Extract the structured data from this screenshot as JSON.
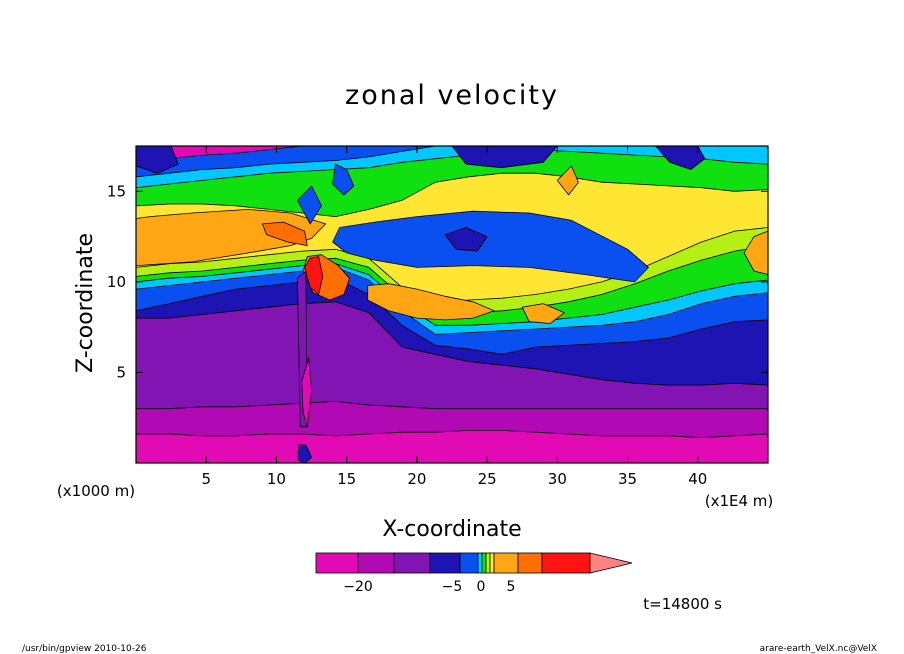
{
  "chart_data": {
    "type": "heatmap",
    "title": "zonal velocity",
    "xlabel": "X-coordinate",
    "ylabel": "Z-coordinate",
    "x_unit": "(x1E4 m)",
    "y_unit": "(x1000 m)",
    "xlim": [
      0,
      45
    ],
    "ylim": [
      0,
      17.5
    ],
    "x_ticks": [
      "5",
      "10",
      "15",
      "20",
      "25",
      "30",
      "35",
      "40"
    ],
    "y_ticks": [
      "5",
      "10",
      "15"
    ],
    "colorbar": {
      "ticks": [
        "-20",
        "-5",
        "0",
        "5"
      ],
      "colors": [
        "#e10ab4",
        "#b10ab4",
        "#8214b4",
        "#1e14b4",
        "#0a50f0",
        "#00c8ff",
        "#10e010",
        "#b4f014",
        "#ffe632",
        "#ffa614",
        "#ff6e00",
        "#ff1414",
        "#ff8282"
      ]
    },
    "time_label": "t=14800 s",
    "footer_left": "/usr/bin/gpview  2010-10-26",
    "footer_right": "arare-earth_VelX.nc@VelX",
    "bands": [
      {
        "name": "magenta",
        "color": "#e10ab4",
        "top": [
          1.6,
          1.6,
          1.5,
          1.5,
          1.6,
          1.6,
          1.5,
          1.6,
          1.7,
          1.7,
          1.8,
          1.8,
          1.7,
          1.6,
          1.5,
          1.5,
          1.5,
          1.4,
          1.5,
          1.6
        ]
      },
      {
        "name": "purple",
        "color": "#b10ab4",
        "top": [
          3.0,
          3.0,
          3.1,
          3.1,
          3.2,
          3.3,
          3.4,
          3.2,
          3.1,
          3.0,
          3.0,
          3.0,
          3.0,
          3.0,
          3.0,
          3.0,
          3.0,
          3.0,
          3.0,
          3.0
        ]
      },
      {
        "name": "violet",
        "color": "#8214b4",
        "top": [
          8.0,
          8.0,
          8.2,
          8.4,
          8.6,
          8.8,
          8.9,
          8.3,
          6.4,
          6.0,
          5.6,
          5.4,
          5.2,
          4.9,
          4.6,
          4.4,
          4.3,
          4.3,
          4.4,
          4.3
        ]
      },
      {
        "name": "darkblue",
        "color": "#1e14b4",
        "top": [
          8.4,
          8.8,
          9.2,
          9.6,
          9.8,
          10.0,
          10.2,
          9.3,
          7.6,
          6.5,
          6.3,
          6.0,
          6.4,
          6.5,
          6.6,
          6.7,
          6.9,
          7.4,
          7.8,
          7.9
        ]
      },
      {
        "name": "blue",
        "color": "#0a50f0",
        "top": [
          9.6,
          9.8,
          10.0,
          10.2,
          10.4,
          10.6,
          10.8,
          10.1,
          8.4,
          7.1,
          7.2,
          7.3,
          7.4,
          7.5,
          7.6,
          7.8,
          8.2,
          8.8,
          9.2,
          9.4
        ]
      },
      {
        "name": "cyan",
        "color": "#00c8ff",
        "top": [
          10.0,
          10.2,
          10.3,
          10.5,
          10.7,
          10.9,
          11.0,
          10.4,
          8.8,
          7.6,
          7.6,
          7.7,
          7.8,
          8.0,
          8.2,
          8.6,
          9.0,
          9.5,
          9.9,
          10.1
        ]
      },
      {
        "name": "green",
        "color": "#10e010",
        "top": [
          10.3,
          10.5,
          10.6,
          10.8,
          11.0,
          11.2,
          11.3,
          10.8,
          9.2,
          8.2,
          8.3,
          8.4,
          8.6,
          8.9,
          9.3,
          9.9,
          10.6,
          11.2,
          11.7,
          12.0
        ]
      },
      {
        "name": "lime",
        "color": "#b4f014",
        "top": [
          10.8,
          11.0,
          11.1,
          11.3,
          11.5,
          11.7,
          11.8,
          11.3,
          9.7,
          8.8,
          9.0,
          9.1,
          9.3,
          9.6,
          10.0,
          10.6,
          11.4,
          12.2,
          12.8,
          13.0
        ]
      },
      {
        "name": "yellow",
        "color": "#ffe632",
        "top": [
          14.2,
          14.3,
          14.3,
          14.2,
          14.0,
          13.8,
          13.6,
          14.0,
          14.5,
          15.5,
          15.8,
          16.0,
          16.0,
          15.8,
          15.5,
          15.4,
          15.3,
          15.2,
          15.0,
          15.1
        ]
      },
      {
        "name": "green-upper",
        "color": "#10e010",
        "top": [
          15.2,
          15.4,
          15.6,
          15.8,
          16.0,
          16.1,
          16.2,
          16.3,
          16.6,
          16.8,
          17.0,
          17.2,
          17.3,
          17.2,
          17.1,
          17.0,
          16.9,
          16.8,
          16.6,
          16.5
        ]
      },
      {
        "name": "cyan-top",
        "color": "#00c8ff",
        "top": [
          15.8,
          16.0,
          16.2,
          16.3,
          16.5,
          16.6,
          16.7,
          16.9,
          17.2,
          17.5,
          17.5,
          17.5,
          17.5,
          17.5,
          17.5,
          17.5,
          17.5,
          17.5,
          17.5,
          17.5
        ]
      },
      {
        "name": "blue-top",
        "color": "#0a50f0",
        "top": [
          16.6,
          16.8,
          17.0,
          17.1,
          17.3,
          17.5,
          17.5,
          17.5,
          17.5,
          17.5,
          17.5,
          17.5,
          17.5,
          17.5,
          17.5,
          17.5,
          17.5,
          17.5,
          17.5,
          17.5
        ]
      }
    ],
    "blobs": [
      {
        "color": "#ffa614",
        "points": [
          [
            0,
            10.9
          ],
          [
            4,
            11.1
          ],
          [
            8,
            11.6
          ],
          [
            11,
            12.0
          ],
          [
            12.5,
            12.4
          ],
          [
            13.5,
            13.2
          ],
          [
            11,
            13.8
          ],
          [
            8,
            14.0
          ],
          [
            4,
            13.8
          ],
          [
            1,
            13.6
          ],
          [
            0,
            13.5
          ]
        ]
      },
      {
        "color": "#ff6e00",
        "points": [
          [
            9.0,
            13.2
          ],
          [
            10.5,
            13.3
          ],
          [
            12.0,
            12.8
          ],
          [
            12.2,
            12.0
          ],
          [
            10.8,
            12.2
          ],
          [
            9.3,
            12.6
          ]
        ]
      },
      {
        "color": "#ff6e00",
        "points": [
          [
            11.9,
            10.6
          ],
          [
            12.6,
            9.4
          ],
          [
            13.8,
            9.0
          ],
          [
            14.8,
            9.3
          ],
          [
            15.2,
            10.2
          ],
          [
            14.4,
            10.9
          ],
          [
            13.2,
            11.5
          ],
          [
            12.2,
            11.4
          ]
        ]
      },
      {
        "color": "#ff1414",
        "points": [
          [
            12.0,
            10.8
          ],
          [
            12.4,
            9.7
          ],
          [
            13.0,
            9.3
          ],
          [
            13.3,
            10.3
          ],
          [
            13.0,
            11.4
          ],
          [
            12.4,
            11.3
          ]
        ]
      },
      {
        "color": "#ffa614",
        "points": [
          [
            16.5,
            9.8
          ],
          [
            18,
            9.9
          ],
          [
            20,
            9.6
          ],
          [
            22,
            9.2
          ],
          [
            24,
            8.9
          ],
          [
            25.5,
            8.4
          ],
          [
            24,
            8.0
          ],
          [
            22,
            7.9
          ],
          [
            20,
            8.0
          ],
          [
            18,
            8.4
          ],
          [
            16.5,
            9.0
          ]
        ]
      },
      {
        "color": "#ffa614",
        "points": [
          [
            27.5,
            8.6
          ],
          [
            29,
            8.8
          ],
          [
            30.5,
            8.3
          ],
          [
            29.5,
            7.7
          ],
          [
            28,
            7.8
          ]
        ]
      },
      {
        "color": "#ffa614",
        "points": [
          [
            43.3,
            11.6
          ],
          [
            44.0,
            12.5
          ],
          [
            45.0,
            12.8
          ],
          [
            45.0,
            10.4
          ],
          [
            44.0,
            10.6
          ]
        ]
      },
      {
        "color": "#ffa614",
        "points": [
          [
            30.0,
            15.6
          ],
          [
            31.0,
            16.4
          ],
          [
            31.5,
            15.5
          ],
          [
            30.8,
            14.8
          ]
        ]
      },
      {
        "color": "#0a50f0",
        "points": [
          [
            14.5,
            13.0
          ],
          [
            17,
            13.3
          ],
          [
            20,
            13.6
          ],
          [
            24,
            13.9
          ],
          [
            28,
            13.8
          ],
          [
            31,
            13.4
          ],
          [
            33,
            12.6
          ],
          [
            35,
            11.8
          ],
          [
            36.5,
            10.8
          ],
          [
            35.5,
            10.0
          ],
          [
            32,
            10.4
          ],
          [
            28,
            10.8
          ],
          [
            24,
            10.9
          ],
          [
            20,
            10.8
          ],
          [
            17,
            11.2
          ],
          [
            15,
            11.6
          ],
          [
            14,
            12.2
          ]
        ]
      },
      {
        "color": "#1e14b4",
        "points": [
          [
            22.0,
            12.6
          ],
          [
            23.5,
            13.0
          ],
          [
            25.0,
            12.5
          ],
          [
            24.3,
            11.7
          ],
          [
            22.8,
            11.8
          ]
        ]
      },
      {
        "color": "#1e14b4",
        "points": [
          [
            22.5,
            17.5
          ],
          [
            30,
            17.5
          ],
          [
            29,
            16.6
          ],
          [
            26,
            16.3
          ],
          [
            23.5,
            16.5
          ]
        ]
      },
      {
        "color": "#1e14b4",
        "points": [
          [
            0,
            17.5
          ],
          [
            0,
            16.4
          ],
          [
            1.5,
            16.0
          ],
          [
            3,
            16.5
          ],
          [
            2.5,
            17.5
          ]
        ]
      },
      {
        "color": "#0a50f0",
        "points": [
          [
            14.2,
            16.5
          ],
          [
            15.0,
            16.2
          ],
          [
            15.5,
            15.3
          ],
          [
            14.8,
            14.8
          ],
          [
            14.0,
            15.4
          ]
        ]
      },
      {
        "color": "#1e14b4",
        "points": [
          [
            37.0,
            17.5
          ],
          [
            38.0,
            16.6
          ],
          [
            39.5,
            16.2
          ],
          [
            40.5,
            16.8
          ],
          [
            40.0,
            17.5
          ]
        ]
      },
      {
        "color": "#8214b4",
        "points": [
          [
            11.5,
            10.2
          ],
          [
            12.1,
            10.6
          ],
          [
            12.2,
            2.0
          ],
          [
            11.7,
            2.0
          ]
        ]
      },
      {
        "color": "#e10ab4",
        "points": [
          [
            11.8,
            4.5
          ],
          [
            12.3,
            5.8
          ],
          [
            12.5,
            4.0
          ],
          [
            12.2,
            2.0
          ],
          [
            11.9,
            2.8
          ]
        ]
      },
      {
        "color": "#1e14b4",
        "points": [
          [
            11.6,
            1.0
          ],
          [
            12.1,
            1.0
          ],
          [
            12.5,
            0.3
          ],
          [
            12.0,
            0
          ],
          [
            11.5,
            0.2
          ]
        ]
      },
      {
        "color": "#0a50f0",
        "points": [
          [
            11.5,
            14.5
          ],
          [
            12.5,
            15.3
          ],
          [
            13.2,
            14.2
          ],
          [
            12.4,
            13.2
          ]
        ]
      }
    ]
  }
}
